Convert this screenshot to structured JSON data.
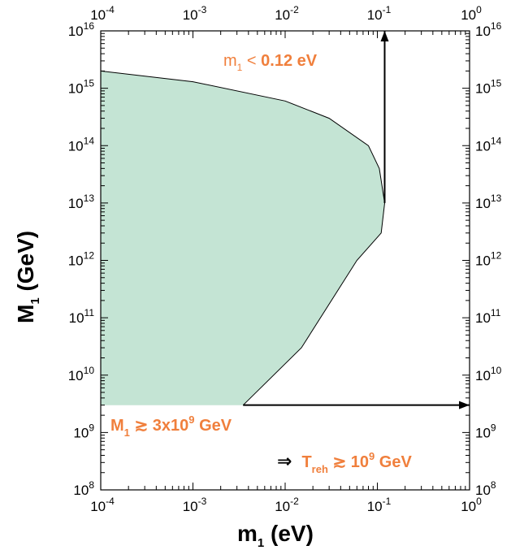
{
  "chart_data": {
    "type": "area",
    "x_scale": "log",
    "y_scale": "log",
    "xlim": [
      0.0001,
      1
    ],
    "ylim": [
      100000000,
      10000000000000000
    ],
    "x_ticks": [
      0.0001,
      0.001,
      0.01,
      0.1,
      1
    ],
    "y_ticks": [
      100000000,
      1000000000,
      10000000000,
      100000000000,
      1000000000000,
      10000000000000,
      100000000000000,
      1000000000000000,
      10000000000000000
    ],
    "x_tick_labels": [
      {
        "base": "10",
        "exp": "-4"
      },
      {
        "base": "10",
        "exp": "-3"
      },
      {
        "base": "10",
        "exp": "-2"
      },
      {
        "base": "10",
        "exp": "-1"
      },
      {
        "base": "10",
        "exp": "0"
      }
    ],
    "y_tick_labels": [
      {
        "base": "10",
        "exp": "8"
      },
      {
        "base": "10",
        "exp": "9"
      },
      {
        "base": "10",
        "exp": "10"
      },
      {
        "base": "10",
        "exp": "11"
      },
      {
        "base": "10",
        "exp": "12"
      },
      {
        "base": "10",
        "exp": "13"
      },
      {
        "base": "10",
        "exp": "14"
      },
      {
        "base": "10",
        "exp": "15"
      },
      {
        "base": "10",
        "exp": "16"
      }
    ],
    "xlabel": {
      "main": "m",
      "sub": "1",
      "rest": " (eV)"
    },
    "ylabel": {
      "main": "M",
      "sub": "1",
      "rest": " (GeV)"
    },
    "fill_color": "#c4e4d4",
    "boundary_color": "#000000",
    "annotation_color": "#f07f3c",
    "region_boundary": [
      {
        "x": 0.0001,
        "y": 2000000000000000
      },
      {
        "x": 0.001,
        "y": 1300000000000000
      },
      {
        "x": 0.01,
        "y": 600000000000000
      },
      {
        "x": 0.03,
        "y": 300000000000000
      },
      {
        "x": 0.08,
        "y": 100000000000000
      },
      {
        "x": 0.105,
        "y": 40000000000000
      },
      {
        "x": 0.12,
        "y": 10000000000000
      },
      {
        "x": 0.11,
        "y": 3000000000000
      },
      {
        "x": 0.06,
        "y": 1000000000000
      },
      {
        "x": 0.015,
        "y": 30000000000
      },
      {
        "x": 0.0035,
        "y": 3000000000
      },
      {
        "x": 0.0001,
        "y": 3000000000
      }
    ],
    "arrows": [
      {
        "from": {
          "x": 0.12,
          "y": 10000000000000
        },
        "to": {
          "x": 0.12,
          "y": 10000000000000000
        }
      },
      {
        "from": {
          "x": 0.0035,
          "y": 3000000000
        },
        "to": {
          "x": 1,
          "y": 3000000000
        }
      }
    ],
    "annotations": {
      "mass_bound": {
        "m": "m",
        "m_sub": "1",
        "op": " < ",
        "val": "0.12 eV"
      },
      "M1_bound": {
        "M": "M",
        "M_sub": "1",
        "op": " ≳ 3x10",
        "exp": "9",
        "unit": " GeV"
      },
      "treh_bound": {
        "arrow": "⇒",
        "T": "T",
        "T_sub": "reh",
        "op": " ≳ 10",
        "exp": "9",
        "unit": " GeV"
      }
    },
    "grid": false,
    "legend": "none"
  }
}
